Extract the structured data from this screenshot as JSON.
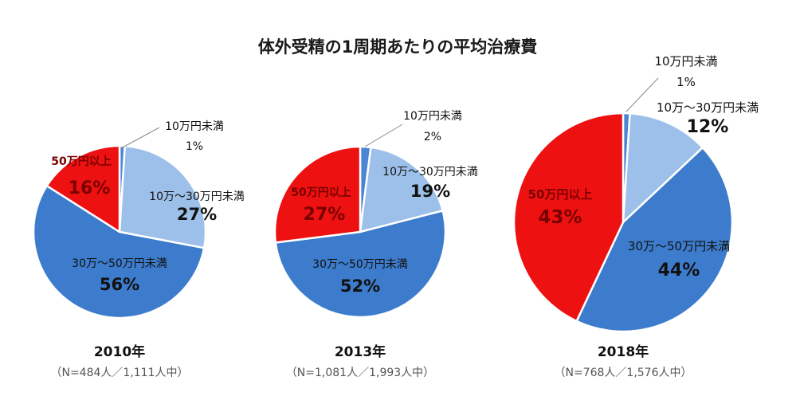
{
  "chart_data": {
    "title": "体外受精の1周期あたりの平均治療費",
    "charts": [
      {
        "type": "pie",
        "year_label": "2010年",
        "sample_label": "（N=484人／1,111人中）",
        "slices": [
          {
            "name": "10万円未満",
            "value_label": "1%",
            "value": 1,
            "color": "#4a86d4"
          },
          {
            "name": "10万～30万円未満",
            "value_label": "27%",
            "value": 27,
            "color": "#9cc0ea"
          },
          {
            "name": "30万～50万円未満",
            "value_label": "56%",
            "value": 56,
            "color": "#3d7ccc"
          },
          {
            "name": "50万円以上",
            "value_label": "16%",
            "value": 16,
            "color": "#ee1111"
          }
        ]
      },
      {
        "type": "pie",
        "year_label": "2013年",
        "sample_label": "（N=1,081人／1,993人中）",
        "slices": [
          {
            "name": "10万円未満",
            "value_label": "2%",
            "value": 2,
            "color": "#4a86d4"
          },
          {
            "name": "10万～30万円未満",
            "value_label": "19%",
            "value": 19,
            "color": "#9cc0ea"
          },
          {
            "name": "30万～50万円未満",
            "value_label": "52%",
            "value": 52,
            "color": "#3d7ccc"
          },
          {
            "name": "50万円以上",
            "value_label": "27%",
            "value": 27,
            "color": "#ee1111"
          }
        ]
      },
      {
        "type": "pie",
        "year_label": "2018年",
        "sample_label": "（N=768人／1,576人中）",
        "slices": [
          {
            "name": "10万円未満",
            "value_label": "1%",
            "value": 1,
            "color": "#4a86d4"
          },
          {
            "name": "10万～30万円未満",
            "value_label": "12%",
            "value": 12,
            "color": "#9cc0ea"
          },
          {
            "name": "30万～50万円未満",
            "value_label": "44%",
            "value": 44,
            "color": "#3d7ccc"
          },
          {
            "name": "50万円以上",
            "value_label": "43%",
            "value": 43,
            "color": "#ee1111"
          }
        ]
      }
    ]
  }
}
